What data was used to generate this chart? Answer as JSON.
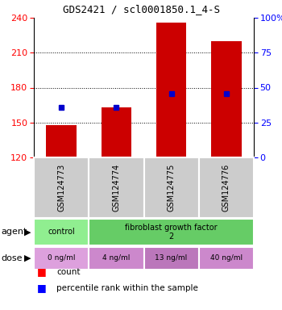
{
  "title": "GDS2421 / scl0001850.1_4-S",
  "samples": [
    "GSM124773",
    "GSM124774",
    "GSM124775",
    "GSM124776"
  ],
  "bar_bottoms": [
    120,
    120,
    120,
    120
  ],
  "bar_tops": [
    148,
    163,
    236,
    220
  ],
  "percentile_values": [
    163,
    163,
    175,
    175
  ],
  "ylim": [
    120,
    240
  ],
  "ylim_right": [
    0,
    100
  ],
  "yticks_left": [
    120,
    150,
    180,
    210,
    240
  ],
  "yticks_right": [
    0,
    25,
    50,
    75,
    100
  ],
  "bar_color": "#cc0000",
  "percentile_color": "#0000cc",
  "agent_labels": [
    "control",
    "fibroblast growth factor\n2"
  ],
  "agent_colors": [
    "#90EE90",
    "#66CC66"
  ],
  "dose_labels": [
    "0 ng/ml",
    "4 ng/ml",
    "13 ng/ml",
    "40 ng/ml"
  ],
  "dose_colors": [
    "#DDA0DD",
    "#CC88CC",
    "#BB77BB",
    "#CC88CC"
  ],
  "background_color": "#ffffff",
  "sample_label_bg": "#cccccc"
}
